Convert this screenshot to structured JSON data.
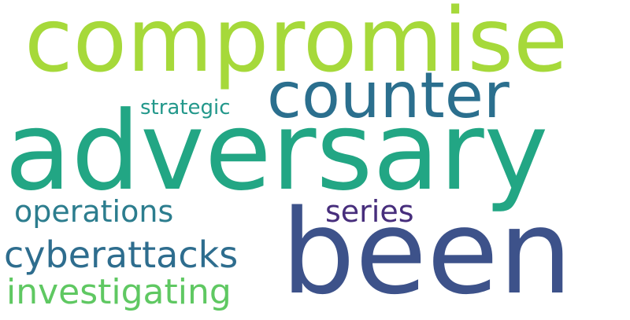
{
  "word_cloud": {
    "background": "#ffffff",
    "words": [
      {
        "key": "compromise",
        "text": "compromise",
        "color": "#a6d93a"
      },
      {
        "key": "adversary",
        "text": "adversary",
        "color": "#22a684"
      },
      {
        "key": "counter",
        "text": "counter",
        "color": "#2b6f8e"
      },
      {
        "key": "strategic",
        "text": "strategic",
        "color": "#23988b"
      },
      {
        "key": "operations",
        "text": "operations",
        "color": "#2c7d8e"
      },
      {
        "key": "series",
        "text": "series",
        "color": "#472e7c"
      },
      {
        "key": "been",
        "text": "been",
        "color": "#3d528a"
      },
      {
        "key": "cyberattacks",
        "text": "cyberattacks",
        "color": "#2e6d8e"
      },
      {
        "key": "investigating",
        "text": "investigating",
        "color": "#5fc862"
      }
    ]
  }
}
